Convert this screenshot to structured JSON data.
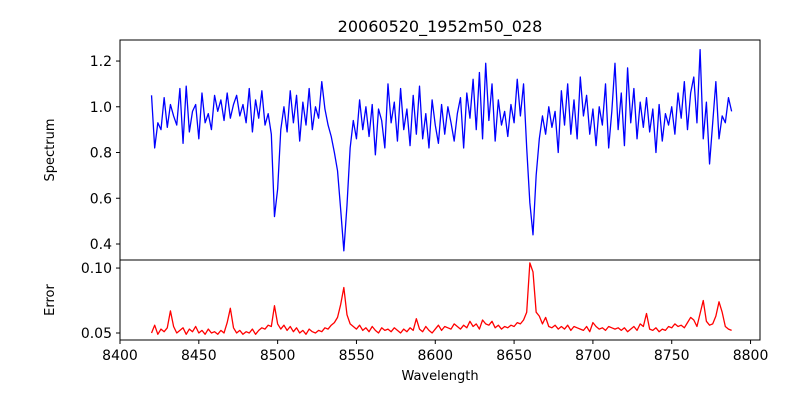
{
  "chart_data": [
    {
      "type": "line",
      "panel": "top",
      "title": "20060520_1952m50_028",
      "ylabel": "Spectrum",
      "xlabel": "",
      "xlim": [
        8400,
        8806
      ],
      "ylim": [
        0.33,
        1.292
      ],
      "yticks": [
        0.4,
        0.6,
        0.8,
        1.0,
        1.2
      ],
      "ytick_labels": [
        "0.4",
        "0.6",
        "0.8",
        "1.0",
        "1.2"
      ],
      "color": "#0000ff",
      "x_start": 8420,
      "x_step": 2,
      "y": [
        1.05,
        0.82,
        0.93,
        0.9,
        1.04,
        0.91,
        1.01,
        0.96,
        0.92,
        1.08,
        0.84,
        1.09,
        0.89,
        0.98,
        1.01,
        0.86,
        1.06,
        0.93,
        0.97,
        0.9,
        1.05,
        0.98,
        1.03,
        0.94,
        1.06,
        0.95,
        1.01,
        1.05,
        0.96,
        1.01,
        0.93,
        1.08,
        0.89,
        1.03,
        0.95,
        1.07,
        0.92,
        0.97,
        0.88,
        0.52,
        0.64,
        0.9,
        1.0,
        0.89,
        1.07,
        0.93,
        1.05,
        0.85,
        1.02,
        0.92,
        1.08,
        0.9,
        1.0,
        0.95,
        1.11,
        0.99,
        0.92,
        0.87,
        0.8,
        0.72,
        0.55,
        0.37,
        0.57,
        0.82,
        0.94,
        0.86,
        1.03,
        0.9,
        1.0,
        0.87,
        1.01,
        0.79,
        0.99,
        0.94,
        0.82,
        1.1,
        0.93,
        1.02,
        0.85,
        1.08,
        0.9,
        0.99,
        0.83,
        1.05,
        0.88,
        1.09,
        0.86,
        0.97,
        0.82,
        1.03,
        0.92,
        0.84,
        1.01,
        0.88,
        1.0,
        0.93,
        0.85,
        0.97,
        1.04,
        0.82,
        1.06,
        0.95,
        1.12,
        0.9,
        1.15,
        0.86,
        1.19,
        0.94,
        1.1,
        0.85,
        1.03,
        0.92,
        0.98,
        0.87,
        1.01,
        0.93,
        1.12,
        0.96,
        1.1,
        0.82,
        0.58,
        0.44,
        0.7,
        0.86,
        0.96,
        0.88,
        1.0,
        0.91,
        0.98,
        0.8,
        1.07,
        0.92,
        1.1,
        0.88,
        1.03,
        0.86,
        1.13,
        0.96,
        1.05,
        0.88,
        0.99,
        0.83,
        1.0,
        0.92,
        1.1,
        0.82,
        0.98,
        1.19,
        0.9,
        1.06,
        0.83,
        1.17,
        0.93,
        1.08,
        0.86,
        1.02,
        0.91,
        1.04,
        0.89,
        0.99,
        0.8,
        1.01,
        0.85,
        0.97,
        0.92,
        1.0,
        0.88,
        1.06,
        0.95,
        1.11,
        0.9,
        1.06,
        1.13,
        0.93,
        1.25,
        0.86,
        1.02,
        0.75,
        0.93,
        1.11,
        0.86,
        0.96,
        0.93,
        1.04,
        0.98
      ]
    },
    {
      "type": "line",
      "panel": "bottom",
      "title": "",
      "ylabel": "Error",
      "xlabel": "Wavelength",
      "xlim": [
        8400,
        8806
      ],
      "ylim": [
        0.0446,
        0.1062
      ],
      "xticks": [
        8400,
        8450,
        8500,
        8550,
        8600,
        8650,
        8700,
        8750,
        8800
      ],
      "xtick_labels": [
        "8400",
        "8450",
        "8500",
        "8550",
        "8600",
        "8650",
        "8700",
        "8750",
        "8800"
      ],
      "yticks": [
        0.05,
        0.1
      ],
      "ytick_labels": [
        "0.05",
        "0.10"
      ],
      "color": "#ff0000",
      "x_start": 8420,
      "x_step": 2,
      "y": [
        0.05,
        0.056,
        0.049,
        0.053,
        0.051,
        0.054,
        0.067,
        0.055,
        0.05,
        0.052,
        0.054,
        0.049,
        0.053,
        0.051,
        0.055,
        0.05,
        0.052,
        0.049,
        0.053,
        0.05,
        0.051,
        0.049,
        0.052,
        0.05,
        0.058,
        0.069,
        0.054,
        0.05,
        0.052,
        0.049,
        0.051,
        0.05,
        0.053,
        0.049,
        0.052,
        0.054,
        0.053,
        0.056,
        0.055,
        0.071,
        0.057,
        0.053,
        0.056,
        0.052,
        0.055,
        0.051,
        0.054,
        0.05,
        0.052,
        0.049,
        0.053,
        0.051,
        0.05,
        0.052,
        0.051,
        0.054,
        0.053,
        0.056,
        0.058,
        0.062,
        0.072,
        0.085,
        0.064,
        0.057,
        0.055,
        0.053,
        0.056,
        0.052,
        0.054,
        0.051,
        0.055,
        0.052,
        0.05,
        0.054,
        0.052,
        0.053,
        0.051,
        0.054,
        0.052,
        0.05,
        0.053,
        0.051,
        0.054,
        0.052,
        0.061,
        0.053,
        0.051,
        0.055,
        0.052,
        0.05,
        0.053,
        0.056,
        0.052,
        0.055,
        0.054,
        0.053,
        0.057,
        0.055,
        0.053,
        0.056,
        0.054,
        0.059,
        0.055,
        0.057,
        0.053,
        0.06,
        0.057,
        0.056,
        0.059,
        0.054,
        0.056,
        0.053,
        0.055,
        0.054,
        0.056,
        0.055,
        0.058,
        0.057,
        0.06,
        0.066,
        0.104,
        0.097,
        0.066,
        0.063,
        0.057,
        0.062,
        0.055,
        0.054,
        0.056,
        0.053,
        0.055,
        0.053,
        0.056,
        0.052,
        0.055,
        0.054,
        0.053,
        0.052,
        0.055,
        0.051,
        0.058,
        0.055,
        0.053,
        0.054,
        0.052,
        0.055,
        0.054,
        0.053,
        0.054,
        0.052,
        0.054,
        0.051,
        0.053,
        0.055,
        0.052,
        0.057,
        0.055,
        0.065,
        0.053,
        0.052,
        0.054,
        0.051,
        0.053,
        0.052,
        0.055,
        0.054,
        0.057,
        0.055,
        0.056,
        0.054,
        0.058,
        0.062,
        0.06,
        0.055,
        0.065,
        0.075,
        0.059,
        0.056,
        0.057,
        0.063,
        0.074,
        0.066,
        0.055,
        0.053,
        0.052
      ]
    }
  ]
}
